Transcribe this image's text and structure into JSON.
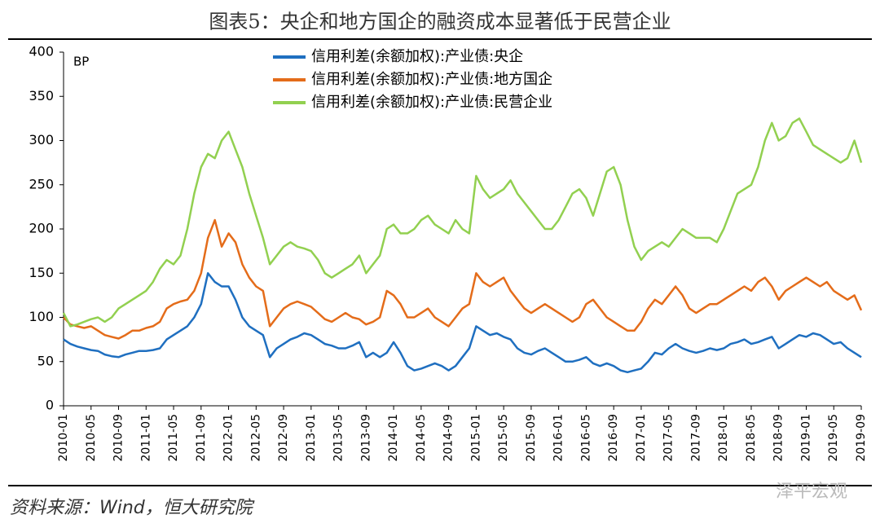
{
  "chart_data": {
    "type": "line",
    "title": "图表5：央企和地方国企的融资成本显著低于民营企业",
    "y_label": "BP",
    "source": "资料来源：Wind，恒大研究院",
    "watermark": "泽平宏观",
    "categories": [
      "2010-01",
      null,
      null,
      null,
      "2010-05",
      null,
      null,
      null,
      "2010-09",
      null,
      null,
      null,
      "2011-01",
      null,
      null,
      null,
      "2011-05",
      null,
      null,
      null,
      "2011-09",
      null,
      null,
      null,
      "2012-01",
      null,
      null,
      null,
      "2012-05",
      null,
      null,
      null,
      "2012-09",
      null,
      null,
      null,
      "2013-01",
      null,
      null,
      null,
      "2013-05",
      null,
      null,
      null,
      "2013-09",
      null,
      null,
      null,
      "2014-01",
      null,
      null,
      null,
      "2014-05",
      null,
      null,
      null,
      "2014-09",
      null,
      null,
      null,
      "2015-01",
      null,
      null,
      null,
      "2015-05",
      null,
      null,
      null,
      "2015-09",
      null,
      null,
      null,
      "2016-01",
      null,
      null,
      null,
      "2016-05",
      null,
      null,
      null,
      "2016-09",
      null,
      null,
      null,
      "2017-01",
      null,
      null,
      null,
      "2017-05",
      null,
      null,
      null,
      "2017-09",
      null,
      null,
      null,
      "2018-01",
      null,
      null,
      null,
      "2018-05",
      null,
      null,
      null,
      "2018-09",
      null,
      null,
      null,
      "2019-01",
      null,
      null,
      null,
      "2019-05",
      null,
      null,
      null,
      "2019-09"
    ],
    "series": [
      {
        "name": "信用利差(余额加权):产业债:央企",
        "color": "#1f6fc0",
        "values": [
          75,
          70,
          67,
          65,
          63,
          62,
          58,
          56,
          55,
          58,
          60,
          62,
          62,
          63,
          65,
          75,
          80,
          85,
          90,
          100,
          115,
          150,
          140,
          135,
          135,
          120,
          100,
          90,
          85,
          80,
          55,
          65,
          70,
          75,
          78,
          82,
          80,
          75,
          70,
          68,
          65,
          65,
          68,
          72,
          55,
          60,
          55,
          60,
          72,
          60,
          45,
          40,
          42,
          45,
          48,
          45,
          40,
          45,
          55,
          65,
          90,
          85,
          80,
          82,
          78,
          75,
          65,
          60,
          58,
          62,
          65,
          60,
          55,
          50,
          50,
          52,
          55,
          48,
          45,
          48,
          45,
          40,
          38,
          40,
          42,
          50,
          60,
          58,
          65,
          70,
          65,
          62,
          60,
          62,
          65,
          63,
          65,
          70,
          72,
          75,
          70,
          72,
          75,
          78,
          65,
          70,
          75,
          80,
          78,
          82,
          80,
          75,
          70,
          72,
          65,
          60,
          55
        ]
      },
      {
        "name": "信用利差(余额加权):产业债:地方国企",
        "color": "#e46c1a",
        "values": [
          100,
          92,
          90,
          88,
          90,
          85,
          80,
          78,
          76,
          80,
          85,
          85,
          88,
          90,
          95,
          110,
          115,
          118,
          120,
          130,
          150,
          190,
          210,
          180,
          195,
          185,
          160,
          145,
          135,
          130,
          90,
          100,
          110,
          115,
          118,
          115,
          112,
          105,
          98,
          95,
          100,
          105,
          100,
          98,
          92,
          95,
          100,
          130,
          125,
          115,
          100,
          100,
          105,
          110,
          100,
          95,
          90,
          100,
          110,
          115,
          150,
          140,
          135,
          140,
          145,
          130,
          120,
          110,
          105,
          110,
          115,
          110,
          105,
          100,
          95,
          100,
          115,
          120,
          110,
          100,
          95,
          90,
          85,
          85,
          95,
          110,
          120,
          115,
          125,
          135,
          125,
          110,
          105,
          110,
          115,
          115,
          120,
          125,
          130,
          135,
          130,
          140,
          145,
          135,
          120,
          130,
          135,
          140,
          145,
          140,
          135,
          140,
          130,
          125,
          120,
          125,
          108
        ]
      },
      {
        "name": "信用利差(余额加权):产业债:民营企业",
        "color": "#92d050",
        "values": [
          105,
          90,
          92,
          95,
          98,
          100,
          95,
          100,
          110,
          115,
          120,
          125,
          130,
          140,
          155,
          165,
          160,
          170,
          200,
          240,
          270,
          285,
          280,
          300,
          310,
          290,
          270,
          240,
          215,
          190,
          160,
          170,
          180,
          185,
          180,
          178,
          175,
          165,
          150,
          145,
          150,
          155,
          160,
          170,
          150,
          160,
          170,
          200,
          205,
          195,
          195,
          200,
          210,
          215,
          205,
          200,
          195,
          210,
          200,
          195,
          260,
          245,
          235,
          240,
          245,
          255,
          240,
          230,
          220,
          210,
          200,
          200,
          210,
          225,
          240,
          245,
          235,
          215,
          240,
          265,
          270,
          250,
          210,
          180,
          165,
          175,
          180,
          185,
          180,
          190,
          200,
          195,
          190,
          190,
          190,
          185,
          200,
          220,
          240,
          245,
          250,
          270,
          300,
          320,
          300,
          305,
          320,
          325,
          310,
          295,
          290,
          285,
          280,
          275,
          280,
          300,
          275
        ]
      }
    ],
    "ylim": [
      0,
      400
    ],
    "yticks": [
      0,
      50,
      100,
      150,
      200,
      250,
      300,
      350,
      400
    ],
    "grid": false
  }
}
